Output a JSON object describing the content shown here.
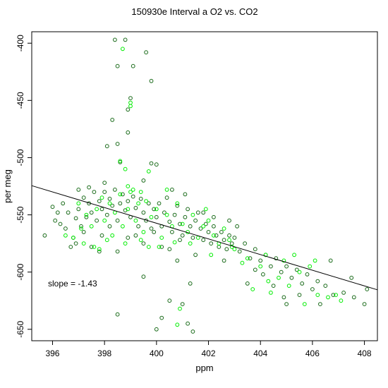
{
  "chart_data": {
    "type": "scatter",
    "title": "150930e   Interval a O2 vs. CO2",
    "xlabel": "ppm",
    "ylabel": "per meg",
    "xlim": [
      395.2,
      408.5
    ],
    "ylim": [
      -660,
      -390
    ],
    "x_ticks": [
      396,
      398,
      400,
      402,
      404,
      406,
      408
    ],
    "y_ticks": [
      -400,
      -450,
      -500,
      -550,
      -600,
      -650
    ],
    "x_tick_labels": [
      "396",
      "398",
      "400",
      "402",
      "404",
      "406",
      "408"
    ],
    "y_tick_labels": [
      "-400",
      "-450",
      "-500",
      "-550",
      "-600",
      "-650"
    ],
    "grid": false,
    "legend": "none",
    "colors": {
      "dark_points": "#1a6b1a",
      "light_points": "#00ee00",
      "fit_line": "#000000"
    },
    "annotation": "slope =  -1.43",
    "fit_line": {
      "slope": -1.43,
      "x": [
        395.2,
        408.5
      ],
      "y": [
        -524.5,
        -615.5
      ]
    },
    "series": [
      {
        "color": "#1a6b1a",
        "points": [
          [
            396.1,
            -555
          ],
          [
            396.3,
            -558
          ],
          [
            396.5,
            -562
          ],
          [
            396.6,
            -548
          ],
          [
            396.8,
            -570
          ],
          [
            396.9,
            -553
          ],
          [
            397.0,
            -545
          ],
          [
            397.1,
            -560
          ],
          [
            397.2,
            -535
          ],
          [
            397.3,
            -552
          ],
          [
            397.4,
            -540
          ],
          [
            397.5,
            -548
          ],
          [
            397.6,
            -530
          ],
          [
            397.7,
            -555
          ],
          [
            397.8,
            -538
          ],
          [
            397.9,
            -545
          ],
          [
            398.0,
            -530
          ],
          [
            398.1,
            -550
          ],
          [
            398.2,
            -536
          ],
          [
            398.3,
            -542
          ],
          [
            398.4,
            -528
          ],
          [
            398.5,
            -555
          ],
          [
            398.6,
            -540
          ],
          [
            398.7,
            -532
          ],
          [
            398.8,
            -546
          ],
          [
            398.9,
            -538
          ],
          [
            399.0,
            -552
          ],
          [
            399.1,
            -534
          ],
          [
            399.2,
            -544
          ],
          [
            399.3,
            -560
          ],
          [
            399.4,
            -536
          ],
          [
            399.5,
            -548
          ],
          [
            399.6,
            -555
          ],
          [
            399.7,
            -540
          ],
          [
            399.8,
            -562
          ],
          [
            399.9,
            -545
          ],
          [
            400.0,
            -552
          ],
          [
            400.1,
            -540
          ],
          [
            400.2,
            -560
          ],
          [
            400.3,
            -548
          ],
          [
            400.4,
            -535
          ],
          [
            400.5,
            -556
          ],
          [
            400.6,
            -565
          ],
          [
            400.7,
            -550
          ],
          [
            400.8,
            -542
          ],
          [
            400.9,
            -558
          ],
          [
            401.0,
            -568
          ],
          [
            401.1,
            -552
          ],
          [
            401.2,
            -545
          ],
          [
            401.3,
            -560
          ],
          [
            401.4,
            -570
          ],
          [
            401.5,
            -555
          ],
          [
            401.6,
            -548
          ],
          [
            401.7,
            -562
          ],
          [
            401.8,
            -572
          ],
          [
            401.9,
            -558
          ],
          [
            402.0,
            -565
          ],
          [
            402.1,
            -575
          ],
          [
            402.2,
            -560
          ],
          [
            402.3,
            -568
          ],
          [
            402.4,
            -578
          ],
          [
            402.5,
            -565
          ],
          [
            402.6,
            -572
          ],
          [
            402.7,
            -580
          ],
          [
            402.8,
            -568
          ],
          [
            402.9,
            -575
          ],
          [
            403.0,
            -570
          ],
          [
            403.2,
            -582
          ],
          [
            403.4,
            -575
          ],
          [
            403.6,
            -588
          ],
          [
            403.8,
            -580
          ],
          [
            404.0,
            -590
          ],
          [
            404.2,
            -585
          ],
          [
            404.4,
            -595
          ],
          [
            404.6,
            -588
          ],
          [
            404.8,
            -600
          ],
          [
            405.0,
            -595
          ],
          [
            405.2,
            -605
          ],
          [
            405.4,
            -598
          ],
          [
            405.6,
            -610
          ],
          [
            405.8,
            -602
          ],
          [
            406.0,
            -615
          ],
          [
            406.2,
            -608
          ],
          [
            406.5,
            -612
          ],
          [
            406.8,
            -620
          ],
          [
            407.2,
            -618
          ],
          [
            407.6,
            -622
          ],
          [
            408.0,
            -628
          ],
          [
            403.1,
            -560
          ],
          [
            404.5,
            -612
          ],
          [
            405.5,
            -620
          ],
          [
            397.5,
            -578
          ],
          [
            398.5,
            -582
          ],
          [
            399.5,
            -575
          ],
          [
            400.5,
            -580
          ],
          [
            396.9,
            -575
          ],
          [
            397.8,
            -582
          ],
          [
            398.9,
            -570
          ],
          [
            400.2,
            -578
          ],
          [
            398.8,
            -397
          ],
          [
            399.1,
            -420
          ],
          [
            398.4,
            -397
          ],
          [
            398.5,
            -420
          ],
          [
            399.6,
            -408
          ],
          [
            399.8,
            -433
          ],
          [
            399.0,
            -448
          ],
          [
            398.9,
            -458
          ],
          [
            398.3,
            -467
          ],
          [
            398.9,
            -478
          ],
          [
            398.5,
            -488
          ],
          [
            398.1,
            -490
          ],
          [
            399.8,
            -505
          ],
          [
            400.0,
            -506
          ],
          [
            398.6,
            -504
          ],
          [
            400.5,
            -625
          ],
          [
            400.2,
            -640
          ],
          [
            400.0,
            -650
          ],
          [
            401.2,
            -645
          ],
          [
            401.4,
            -652
          ],
          [
            401.0,
            -628
          ],
          [
            398.5,
            -637
          ],
          [
            399.5,
            -604
          ],
          [
            401.3,
            -610
          ],
          [
            395.7,
            -568
          ],
          [
            396.0,
            -543
          ],
          [
            403.5,
            -610
          ],
          [
            404.1,
            -602
          ],
          [
            406.7,
            -590
          ],
          [
            407.5,
            -605
          ],
          [
            408.1,
            -615
          ],
          [
            404.9,
            -622
          ],
          [
            406.3,
            -628
          ],
          [
            405.0,
            -628
          ],
          [
            400.8,
            -590
          ],
          [
            401.5,
            -585
          ],
          [
            402.6,
            -590
          ],
          [
            403.8,
            -598
          ],
          [
            396.7,
            -578
          ],
          [
            397.2,
            -565
          ],
          [
            398.2,
            -560
          ],
          [
            399.2,
            -568
          ],
          [
            400.9,
            -572
          ],
          [
            401.8,
            -548
          ],
          [
            402.2,
            -552
          ],
          [
            402.8,
            -555
          ],
          [
            397.0,
            -528
          ],
          [
            397.4,
            -526
          ],
          [
            398.0,
            -522
          ],
          [
            399.5,
            -520
          ],
          [
            400.6,
            -528
          ],
          [
            401.1,
            -532
          ],
          [
            396.4,
            -540
          ],
          [
            396.2,
            -548
          ],
          [
            397.9,
            -568
          ],
          [
            399.9,
            -565
          ]
        ]
      },
      {
        "color": "#00ee00",
        "points": [
          [
            397.0,
            -540
          ],
          [
            397.3,
            -550
          ],
          [
            397.5,
            -560
          ],
          [
            397.7,
            -545
          ],
          [
            397.9,
            -535
          ],
          [
            398.0,
            -555
          ],
          [
            398.2,
            -540
          ],
          [
            398.4,
            -548
          ],
          [
            398.6,
            -532
          ],
          [
            398.7,
            -560
          ],
          [
            398.9,
            -545
          ],
          [
            399.0,
            -530
          ],
          [
            399.2,
            -555
          ],
          [
            399.3,
            -540
          ],
          [
            399.5,
            -565
          ],
          [
            399.6,
            -538
          ],
          [
            399.8,
            -552
          ],
          [
            400.0,
            -545
          ],
          [
            400.2,
            -570
          ],
          [
            400.4,
            -550
          ],
          [
            400.6,
            -560
          ],
          [
            400.8,
            -540
          ],
          [
            401.0,
            -558
          ],
          [
            401.2,
            -565
          ],
          [
            401.4,
            -550
          ],
          [
            401.6,
            -570
          ],
          [
            401.8,
            -560
          ],
          [
            402.0,
            -555
          ],
          [
            402.2,
            -568
          ],
          [
            402.4,
            -575
          ],
          [
            402.6,
            -562
          ],
          [
            402.8,
            -572
          ],
          [
            397.2,
            -575
          ],
          [
            397.6,
            -578
          ],
          [
            398.1,
            -572
          ],
          [
            398.3,
            -568
          ],
          [
            398.8,
            -575
          ],
          [
            399.4,
            -572
          ],
          [
            400.1,
            -578
          ],
          [
            400.7,
            -574
          ],
          [
            396.8,
            -570
          ],
          [
            397.8,
            -580
          ],
          [
            398.7,
            -405
          ],
          [
            399.0,
            -455
          ],
          [
            399.0,
            -452
          ],
          [
            398.6,
            -503
          ],
          [
            398.8,
            -510
          ],
          [
            399.7,
            -512
          ],
          [
            400.9,
            -632
          ],
          [
            400.8,
            -646
          ],
          [
            398.9,
            -525
          ],
          [
            399.1,
            -528
          ],
          [
            399.4,
            -530
          ],
          [
            400.4,
            -528
          ],
          [
            403.5,
            -588
          ],
          [
            404.0,
            -595
          ],
          [
            404.3,
            -608
          ],
          [
            404.7,
            -605
          ],
          [
            405.1,
            -612
          ],
          [
            405.5,
            -600
          ],
          [
            405.9,
            -595
          ],
          [
            406.2,
            -620
          ],
          [
            406.6,
            -622
          ],
          [
            407.1,
            -625
          ],
          [
            404.2,
            -585
          ],
          [
            403.3,
            -592
          ],
          [
            404.9,
            -590
          ],
          [
            405.3,
            -585
          ],
          [
            406.1,
            -590
          ],
          [
            403.0,
            -580
          ],
          [
            402.9,
            -578
          ],
          [
            401.9,
            -545
          ],
          [
            397.1,
            -562
          ],
          [
            396.5,
            -568
          ],
          [
            399.7,
            -578
          ],
          [
            401.3,
            -575
          ],
          [
            402.1,
            -585
          ],
          [
            403.7,
            -615
          ],
          [
            404.4,
            -618
          ],
          [
            405.7,
            -628
          ],
          [
            406.9,
            -620
          ]
        ]
      }
    ]
  }
}
